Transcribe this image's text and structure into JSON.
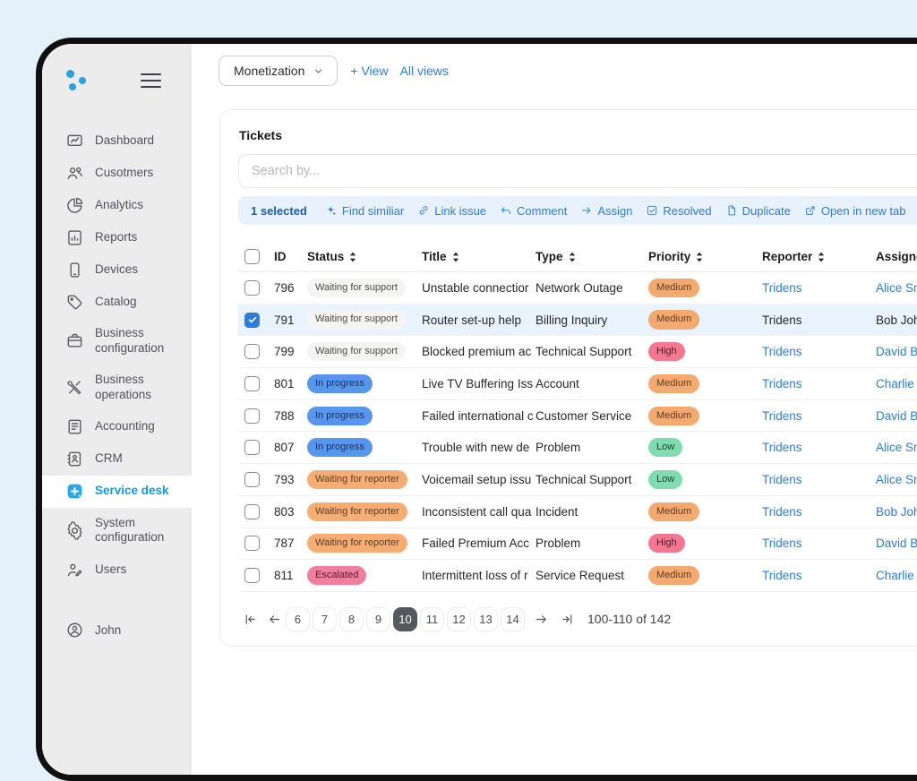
{
  "sidebar": {
    "items": [
      {
        "id": "dashboard",
        "label": "Dashboard",
        "icon": "dashboard"
      },
      {
        "id": "customers",
        "label": "Cusotmers",
        "icon": "customers"
      },
      {
        "id": "analytics",
        "label": "Analytics",
        "icon": "analytics"
      },
      {
        "id": "reports",
        "label": "Reports",
        "icon": "reports"
      },
      {
        "id": "devices",
        "label": "Devices",
        "icon": "devices"
      },
      {
        "id": "catalog",
        "label": "Catalog",
        "icon": "catalog"
      },
      {
        "id": "business-configuration",
        "label": "Business configuration",
        "icon": "bizconfig",
        "two_line": true
      },
      {
        "id": "business-operations",
        "label": "Business operations",
        "icon": "bizops",
        "two_line": true
      },
      {
        "id": "accounting",
        "label": "Accounting",
        "icon": "accounting"
      },
      {
        "id": "crm",
        "label": "CRM",
        "icon": "crm"
      },
      {
        "id": "service-desk",
        "label": "Service desk",
        "icon": "servicedesk",
        "active": true
      },
      {
        "id": "system-configuration",
        "label": "System configuration",
        "icon": "sysconfig",
        "two_line": true
      },
      {
        "id": "users",
        "label": "Users",
        "icon": "users"
      }
    ],
    "user": {
      "label": "John",
      "icon": "usercircle"
    }
  },
  "topbar": {
    "view_selector": "Monetization",
    "add_view": "+ View",
    "all_views": "All views"
  },
  "tickets": {
    "title": "Tickets",
    "search_placeholder": "Search by...",
    "toolbar": {
      "selected_label": "1 selected",
      "actions": [
        {
          "icon": "sparkle",
          "label": "Find similiar"
        },
        {
          "icon": "link",
          "label": "Link issue"
        },
        {
          "icon": "comment",
          "label": "Comment"
        },
        {
          "icon": "assign",
          "label": "Assign"
        },
        {
          "icon": "resolved",
          "label": "Resolved"
        },
        {
          "icon": "duplicate",
          "label": "Duplicate"
        },
        {
          "icon": "external",
          "label": "Open in new tab"
        }
      ]
    },
    "columns": [
      {
        "label": "ID",
        "sortable": false
      },
      {
        "label": "Status",
        "sortable": true
      },
      {
        "label": "Title",
        "sortable": true
      },
      {
        "label": "Type",
        "sortable": true
      },
      {
        "label": "Priority",
        "sortable": true
      },
      {
        "label": "Reporter",
        "sortable": true
      },
      {
        "label": "Assignee",
        "sortable": true
      }
    ],
    "rows": [
      {
        "id": "796",
        "status": "Waiting for support",
        "status_type": "support",
        "title": "Unstable connectior",
        "type": "Network Outage",
        "priority": "Medium",
        "priority_type": "medium",
        "reporter": "Tridens",
        "assignee": "Alice Sm",
        "selected": false
      },
      {
        "id": "791",
        "status": "Waiting for support",
        "status_type": "support",
        "title": "Router set-up help",
        "type": "Billing Inquiry",
        "priority": "Medium",
        "priority_type": "medium",
        "reporter": "Tridens",
        "assignee": "Bob Joh",
        "selected": true
      },
      {
        "id": "799",
        "status": "Waiting for support",
        "status_type": "support",
        "title": "Blocked premium ac",
        "type": "Technical Support",
        "priority": "High",
        "priority_type": "high",
        "reporter": "Tridens",
        "assignee": "David Br",
        "selected": false
      },
      {
        "id": "801",
        "status": "In progress",
        "status_type": "progress",
        "title": "Live TV Buffering Iss",
        "type": "Account",
        "priority": "Medium",
        "priority_type": "medium",
        "reporter": "Tridens",
        "assignee": "Charlie W",
        "selected": false
      },
      {
        "id": "788",
        "status": "In progress",
        "status_type": "progress",
        "title": "Failed international c",
        "type": "Customer Service",
        "priority": "Medium",
        "priority_type": "medium",
        "reporter": "Tridens",
        "assignee": "David Br",
        "selected": false
      },
      {
        "id": "807",
        "status": "In progress",
        "status_type": "progress",
        "title": "Trouble with new de",
        "type": "Problem",
        "priority": "Low",
        "priority_type": "low",
        "reporter": "Tridens",
        "assignee": "Alice Sm",
        "selected": false
      },
      {
        "id": "793",
        "status": "Waiting for reporter",
        "status_type": "reporter",
        "title": "Voicemail setup issu",
        "type": "Technical Support",
        "priority": "Low",
        "priority_type": "low",
        "reporter": "Tridens",
        "assignee": "Alice Sm",
        "selected": false
      },
      {
        "id": "803",
        "status": "Waiting for reporter",
        "status_type": "reporter",
        "title": "Inconsistent call qua",
        "type": "Incident",
        "priority": "Medium",
        "priority_type": "medium",
        "reporter": "Tridens",
        "assignee": "Bob Joh",
        "selected": false
      },
      {
        "id": "787",
        "status": "Waiting for reporter",
        "status_type": "reporter",
        "title": "Failed Premium Acc",
        "type": "Problem",
        "priority": "High",
        "priority_type": "high",
        "reporter": "Tridens",
        "assignee": "David Br",
        "selected": false
      },
      {
        "id": "811",
        "status": "Escalated",
        "status_type": "escalated",
        "title": "Intermittent loss of r",
        "type": "Service Request",
        "priority": "Medium",
        "priority_type": "medium",
        "reporter": "Tridens",
        "assignee": "Charlie W",
        "selected": false
      }
    ],
    "pagination": {
      "pages": [
        "6",
        "7",
        "8",
        "9",
        "10",
        "11",
        "12",
        "13",
        "14"
      ],
      "active_page": "10",
      "summary": "100-110 of 142"
    }
  },
  "colors": {
    "accent_blue": "#2e7cd6",
    "sidebar_active_blue": "#129ade",
    "badge_progress": "#5896ee",
    "badge_medium": "#f3a96f",
    "badge_high": "#f2778f",
    "badge_low": "#7edcae",
    "badge_reporter": "#f6ac72",
    "badge_escalated": "#f07f9d",
    "toolbar_bg": "#e7f2fd",
    "selected_row_bg": "#e8f3fd"
  }
}
